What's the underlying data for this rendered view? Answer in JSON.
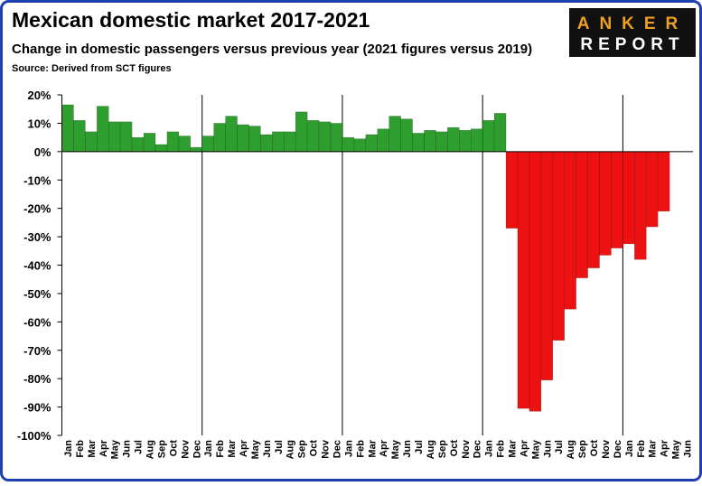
{
  "chart_data": {
    "type": "bar",
    "title": "Mexican domestic market 2017-2021",
    "subtitle": "Change in domestic passengers versus previous year (2021 figures versus 2019)",
    "source": "Source: Derived from SCT figures",
    "logo": [
      "ANKER",
      "REPORT"
    ],
    "categories": [
      "Jan",
      "Feb",
      "Mar",
      "Apr",
      "May",
      "Jun",
      "Jul",
      "Aug",
      "Sep",
      "Oct",
      "Nov",
      "Dec",
      "Jan",
      "Feb",
      "Mar",
      "Apr",
      "May",
      "Jun",
      "Jul",
      "Aug",
      "Sep",
      "Oct",
      "Nov",
      "Dec",
      "Jan",
      "Feb",
      "Mar",
      "Apr",
      "May",
      "Jun",
      "Jul",
      "Aug",
      "Sep",
      "Oct",
      "Nov",
      "Dec",
      "Jan",
      "Feb",
      "Mar",
      "Apr",
      "May",
      "Jun",
      "Jul",
      "Aug",
      "Sep",
      "Oct",
      "Nov",
      "Dec",
      "Jan",
      "Feb",
      "Mar",
      "Apr",
      "May",
      "Jun"
    ],
    "values": [
      16.5,
      11,
      7,
      16,
      10.5,
      10.5,
      5,
      6.5,
      2.5,
      7,
      5.5,
      1.5,
      5.5,
      10,
      12.5,
      9.5,
      9,
      6,
      7,
      7,
      14,
      11,
      10.5,
      10,
      5,
      4.5,
      6,
      8,
      12.5,
      11.5,
      6.5,
      7.5,
      7,
      8.5,
      7.5,
      8,
      11,
      13.5,
      -27,
      -90.5,
      -91.5,
      -80.5,
      -66.5,
      -55.5,
      -44.5,
      -41,
      -36.5,
      -34,
      -32.5,
      -38,
      -26.5,
      -21,
      null,
      null
    ],
    "color_positive": "#2e9e2e",
    "color_negative": "#ee1111",
    "ylim": [
      -100,
      20
    ],
    "yticks": [
      {
        "value": 20,
        "label": "20%"
      },
      {
        "value": 10,
        "label": "10%"
      },
      {
        "value": 0,
        "label": "0%"
      },
      {
        "value": -10,
        "label": "-10%"
      },
      {
        "value": -20,
        "label": "-20%"
      },
      {
        "value": -30,
        "label": "-30%"
      },
      {
        "value": -40,
        "label": "-40%"
      },
      {
        "value": -50,
        "label": "-50%"
      },
      {
        "value": -60,
        "label": "-60%"
      },
      {
        "value": -70,
        "label": "-70%"
      },
      {
        "value": -80,
        "label": "-80%"
      },
      {
        "value": -90,
        "label": "-90%"
      },
      {
        "value": -100,
        "label": "-100%"
      }
    ],
    "grid": false
  }
}
